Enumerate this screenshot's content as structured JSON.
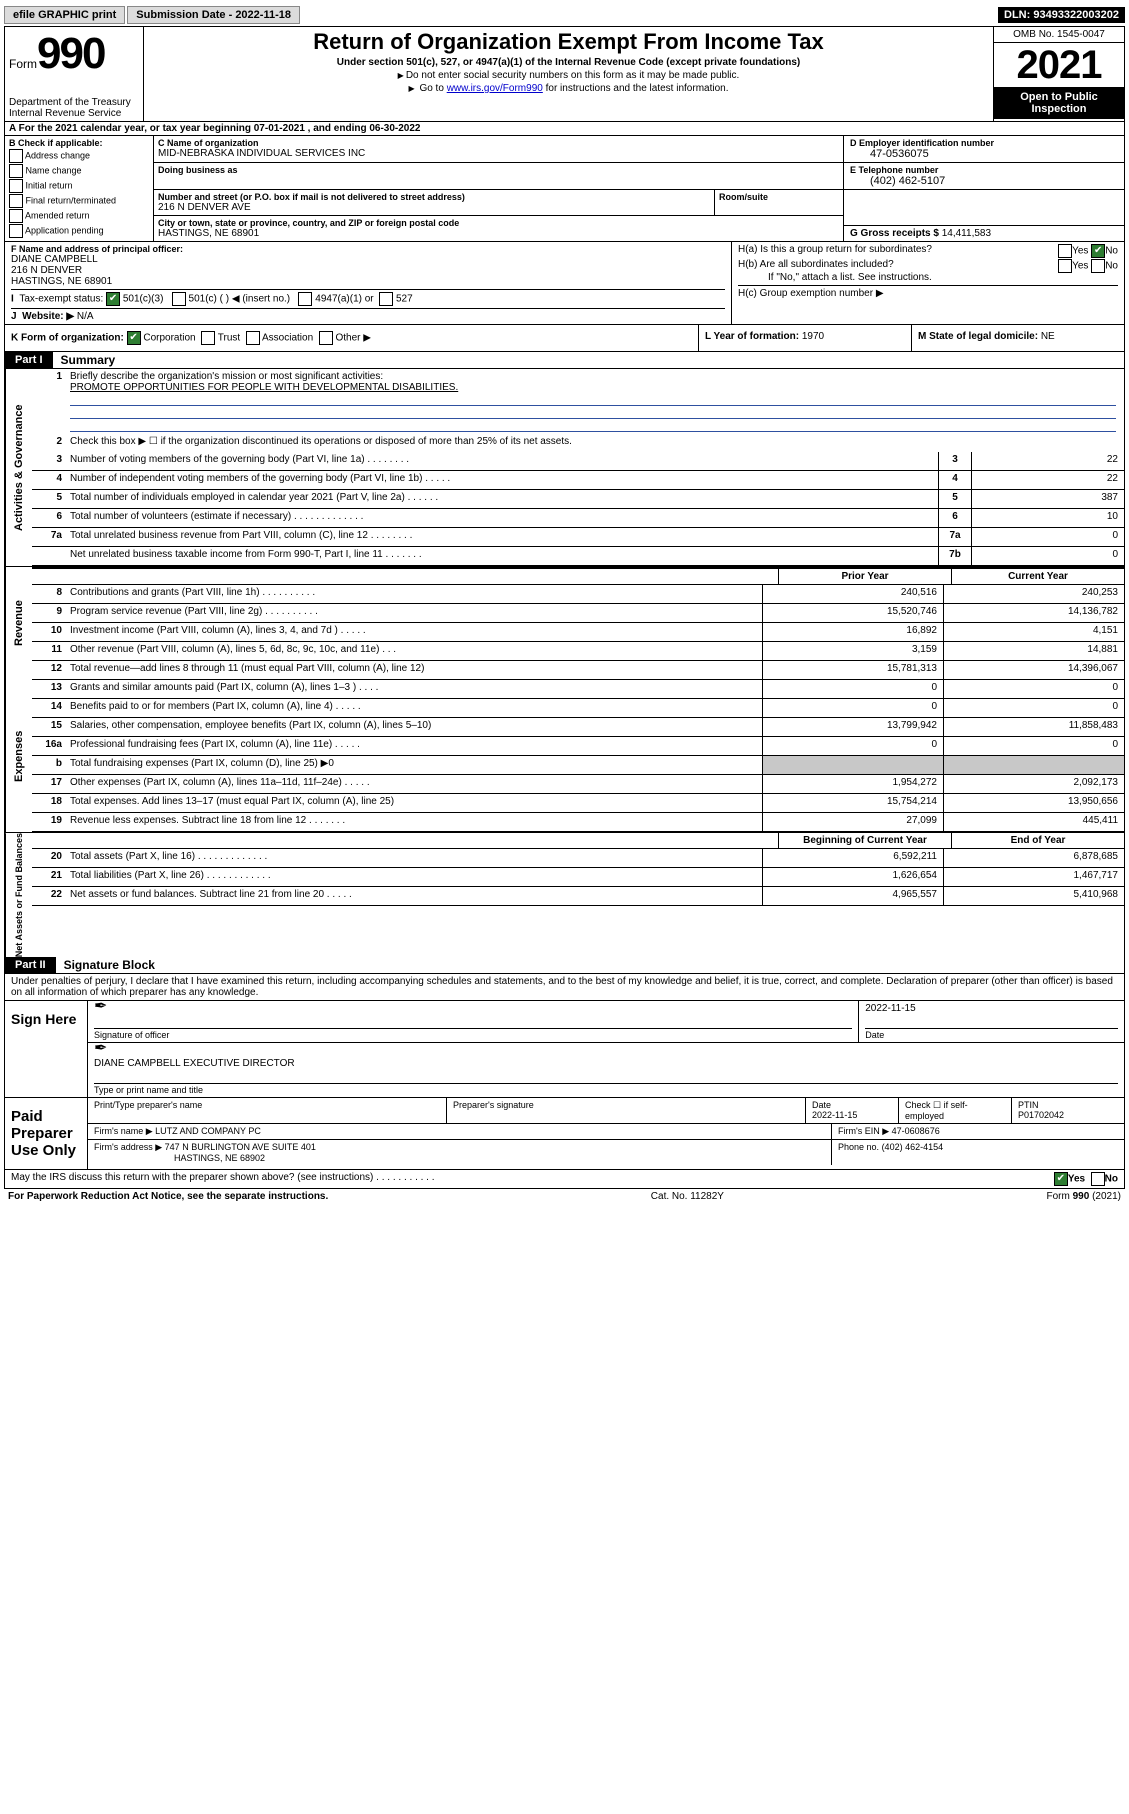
{
  "topbar": {
    "efile": "efile GRAPHIC print",
    "submission_label": "Submission Date - 2022-11-18",
    "dln": "DLN: 93493322003202"
  },
  "header": {
    "form_word": "Form",
    "form_num": "990",
    "dept": "Department of the Treasury",
    "irs": "Internal Revenue Service",
    "title": "Return of Organization Exempt From Income Tax",
    "sub": "Under section 501(c), 527, or 4947(a)(1) of the Internal Revenue Code (except private foundations)",
    "note1": "Do not enter social security numbers on this form as it may be made public.",
    "note2_a": "Go to ",
    "note2_link": "www.irs.gov/Form990",
    "note2_b": " for instructions and the latest information.",
    "omb": "OMB No. 1545-0047",
    "year": "2021",
    "open": "Open to Public Inspection"
  },
  "row_a": {
    "text_a": "A For the 2021 calendar year, or tax year beginning ",
    "begin": "07-01-2021",
    "text_b": " , and ending ",
    "end": "06-30-2022"
  },
  "col_b": {
    "head": "B Check if applicable:",
    "items": [
      "Address change",
      "Name change",
      "Initial return",
      "Final return/terminated",
      "Amended return",
      "Application pending"
    ]
  },
  "col_c": {
    "name_lbl": "C Name of organization",
    "name": "MID-NEBRASKA INDIVIDUAL SERVICES INC",
    "dba_lbl": "Doing business as",
    "dba": "",
    "addr_lbl": "Number and street (or P.O. box if mail is not delivered to street address)",
    "addr": "216 N DENVER AVE",
    "room_lbl": "Room/suite",
    "city_lbl": "City or town, state or province, country, and ZIP or foreign postal code",
    "city": "HASTINGS, NE  68901"
  },
  "col_d": {
    "ein_lbl": "D Employer identification number",
    "ein": "47-0536075",
    "tel_lbl": "E Telephone number",
    "tel": "(402) 462-5107",
    "gross_lbl": "G Gross receipts $",
    "gross": "14,411,583"
  },
  "row_f": {
    "lbl": "F Name and address of principal officer:",
    "name": "DIANE CAMPBELL",
    "addr1": "216 N DENVER",
    "addr2": "HASTINGS, NE  68901"
  },
  "row_h": {
    "ha": "H(a)  Is this a group return for subordinates?",
    "hb": "H(b)  Are all subordinates included?",
    "hb_note": "If \"No,\" attach a list. See instructions.",
    "hc": "H(c)  Group exemption number ▶",
    "yes": "Yes",
    "no": "No"
  },
  "row_i": {
    "lbl": "Tax-exempt status:",
    "opt1": "501(c)(3)",
    "opt2": "501(c) (   ) ◀ (insert no.)",
    "opt3": "4947(a)(1) or",
    "opt4": "527"
  },
  "row_j": {
    "lbl": "Website: ▶",
    "val": "N/A"
  },
  "row_k": {
    "lbl": "K Form of organization:",
    "opts": [
      "Corporation",
      "Trust",
      "Association",
      "Other ▶"
    ]
  },
  "row_l": {
    "lbl": "L Year of formation:",
    "val": "1970"
  },
  "row_m": {
    "lbl": "M State of legal domicile:",
    "val": "NE"
  },
  "part1": {
    "tag": "Part I",
    "title": "Summary"
  },
  "mission": {
    "q": "Briefly describe the organization's mission or most significant activities:",
    "a": "PROMOTE OPPORTUNITIES FOR PEOPLE WITH DEVELOPMENTAL DISABILITIES."
  },
  "governance": {
    "l2": "Check this box ▶ ☐  if the organization discontinued its operations or disposed of more than 25% of its net assets.",
    "rows": [
      {
        "n": "3",
        "t": "Number of voting members of the governing body (Part VI, line 1a)  .   .   .   .   .   .   .   .",
        "box": "3",
        "v": "22"
      },
      {
        "n": "4",
        "t": "Number of independent voting members of the governing body (Part VI, line 1b)   .   .   .   .   .",
        "box": "4",
        "v": "22"
      },
      {
        "n": "5",
        "t": "Total number of individuals employed in calendar year 2021 (Part V, line 2a)   .   .   .   .   .   .",
        "box": "5",
        "v": "387"
      },
      {
        "n": "6",
        "t": "Total number of volunteers (estimate if necessary)   .   .   .   .   .   .   .   .   .   .   .   .   .",
        "box": "6",
        "v": "10"
      },
      {
        "n": "7a",
        "t": "Total unrelated business revenue from Part VIII, column (C), line 12   .   .   .   .   .   .   .   .",
        "box": "7a",
        "v": "0"
      },
      {
        "n": "",
        "t": "Net unrelated business taxable income from Form 990-T, Part I, line 11   .   .   .   .   .   .   .",
        "box": "7b",
        "v": "0"
      }
    ]
  },
  "two_col_hdr": {
    "c1": "Prior Year",
    "c2": "Current Year"
  },
  "revenue": [
    {
      "n": "8",
      "t": "Contributions and grants (Part VIII, line 1h)   .   .   .   .   .   .   .   .   .   .",
      "p": "240,516",
      "c": "240,253"
    },
    {
      "n": "9",
      "t": "Program service revenue (Part VIII, line 2g)   .   .   .   .   .   .   .   .   .   .",
      "p": "15,520,746",
      "c": "14,136,782"
    },
    {
      "n": "10",
      "t": "Investment income (Part VIII, column (A), lines 3, 4, and 7d )   .   .   .   .   .",
      "p": "16,892",
      "c": "4,151"
    },
    {
      "n": "11",
      "t": "Other revenue (Part VIII, column (A), lines 5, 6d, 8c, 9c, 10c, and 11e)   .   .   .",
      "p": "3,159",
      "c": "14,881"
    },
    {
      "n": "12",
      "t": "Total revenue—add lines 8 through 11 (must equal Part VIII, column (A), line 12)",
      "p": "15,781,313",
      "c": "14,396,067"
    }
  ],
  "expenses": [
    {
      "n": "13",
      "t": "Grants and similar amounts paid (Part IX, column (A), lines 1–3 )   .   .   .   .",
      "p": "0",
      "c": "0"
    },
    {
      "n": "14",
      "t": "Benefits paid to or for members (Part IX, column (A), line 4)   .   .   .   .   .",
      "p": "0",
      "c": "0"
    },
    {
      "n": "15",
      "t": "Salaries, other compensation, employee benefits (Part IX, column (A), lines 5–10)",
      "p": "13,799,942",
      "c": "11,858,483"
    },
    {
      "n": "16a",
      "t": "Professional fundraising fees (Part IX, column (A), line 11e)   .   .   .   .   .",
      "p": "0",
      "c": "0"
    },
    {
      "n": "b",
      "t": "Total fundraising expenses (Part IX, column (D), line 25) ▶0",
      "p": "",
      "c": "",
      "shade": true
    },
    {
      "n": "17",
      "t": "Other expenses (Part IX, column (A), lines 11a–11d, 11f–24e)   .   .   .   .   .",
      "p": "1,954,272",
      "c": "2,092,173"
    },
    {
      "n": "18",
      "t": "Total expenses. Add lines 13–17 (must equal Part IX, column (A), line 25)",
      "p": "15,754,214",
      "c": "13,950,656"
    },
    {
      "n": "19",
      "t": "Revenue less expenses. Subtract line 18 from line 12   .   .   .   .   .   .   .",
      "p": "27,099",
      "c": "445,411"
    }
  ],
  "net_hdr": {
    "c1": "Beginning of Current Year",
    "c2": "End of Year"
  },
  "netassets": [
    {
      "n": "20",
      "t": "Total assets (Part X, line 16)   .   .   .   .   .   .   .   .   .   .   .   .   .",
      "p": "6,592,211",
      "c": "6,878,685"
    },
    {
      "n": "21",
      "t": "Total liabilities (Part X, line 26)   .   .   .   .   .   .   .   .   .   .   .   .",
      "p": "1,626,654",
      "c": "1,467,717"
    },
    {
      "n": "22",
      "t": "Net assets or fund balances. Subtract line 21 from line 20   .   .   .   .   .",
      "p": "4,965,557",
      "c": "5,410,968"
    }
  ],
  "side_labels": {
    "gov": "Activities & Governance",
    "rev": "Revenue",
    "exp": "Expenses",
    "net": "Net Assets or Fund Balances"
  },
  "part2": {
    "tag": "Part II",
    "title": "Signature Block"
  },
  "sig": {
    "decl": "Under penalties of perjury, I declare that I have examined this return, including accompanying schedules and statements, and to the best of my knowledge and belief, it is true, correct, and complete. Declaration of preparer (other than officer) is based on all information of which preparer has any knowledge.",
    "sign_here": "Sign Here",
    "sig_officer": "Signature of officer",
    "date_lbl": "Date",
    "date": "2022-11-15",
    "name_title": "DIANE CAMPBELL  EXECUTIVE DIRECTOR",
    "name_title_lbl": "Type or print name and title",
    "paid": "Paid Preparer Use Only",
    "prep_name_lbl": "Print/Type preparer's name",
    "prep_sig_lbl": "Preparer's signature",
    "prep_date_lbl": "Date",
    "prep_date": "2022-11-15",
    "check_lbl": "Check ☐ if self-employed",
    "ptin_lbl": "PTIN",
    "ptin": "P01702042",
    "firm_name_lbl": "Firm's name   ▶",
    "firm_name": "LUTZ AND COMPANY PC",
    "firm_ein_lbl": "Firm's EIN ▶",
    "firm_ein": "47-0608676",
    "firm_addr_lbl": "Firm's address ▶",
    "firm_addr1": "747 N BURLINGTON AVE SUITE 401",
    "firm_addr2": "HASTINGS, NE  68902",
    "phone_lbl": "Phone no.",
    "phone": "(402) 462-4154",
    "discuss": "May the IRS discuss this return with the preparer shown above? (see instructions)   .   .   .   .   .   .   .   .   .   .   .",
    "yes": "Yes",
    "no": "No"
  },
  "footer": {
    "left": "For Paperwork Reduction Act Notice, see the separate instructions.",
    "mid": "Cat. No. 11282Y",
    "right": "Form 990 (2021)"
  },
  "colors": {
    "link": "#0000cc",
    "check_green": "#2e7d32",
    "shade": "#c8c8c8",
    "rule_blue": "#2e50a0"
  }
}
